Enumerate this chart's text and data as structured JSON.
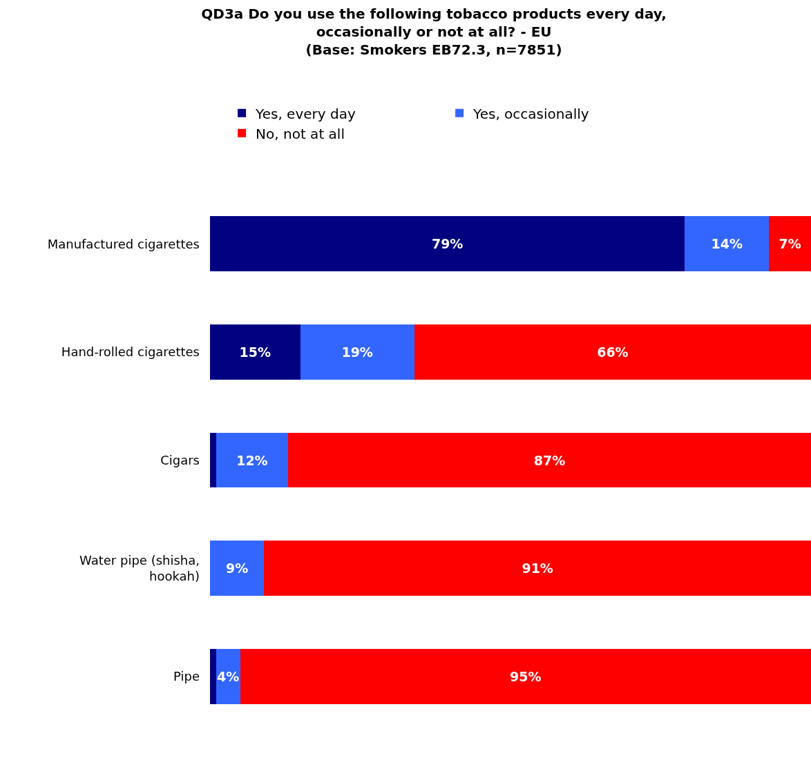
{
  "chart_data": {
    "type": "bar",
    "orientation": "horizontal",
    "stacked": true,
    "title": "QD3a Do you use the following tobacco products every day,\noccasionally or not at all? - EU\n(Base: Smokers EB72.3, n=7851)",
    "categories": [
      "Manufactured cigarettes",
      "Hand-rolled cigarettes",
      "Cigars",
      "Water pipe (shisha, hookah)",
      "Pipe"
    ],
    "series": [
      {
        "name": "Yes, every day",
        "color": "#000080",
        "values": [
          79,
          15,
          1,
          0,
          1
        ],
        "value_labels": [
          "79%",
          "15%",
          null,
          null,
          null
        ]
      },
      {
        "name": "Yes, occasionally",
        "color": "#3366ff",
        "values": [
          14,
          19,
          12,
          9,
          4
        ],
        "value_labels": [
          "14%",
          "19%",
          "12%",
          "9%",
          "4%"
        ]
      },
      {
        "name": "No, not at all",
        "color": "#ff0000",
        "values": [
          7,
          66,
          87,
          91,
          95
        ],
        "value_labels": [
          "7%",
          "66%",
          "87%",
          "91%",
          "95%"
        ]
      }
    ],
    "xlim": [
      0,
      100
    ],
    "legend": "top",
    "tick_labels": "y"
  }
}
